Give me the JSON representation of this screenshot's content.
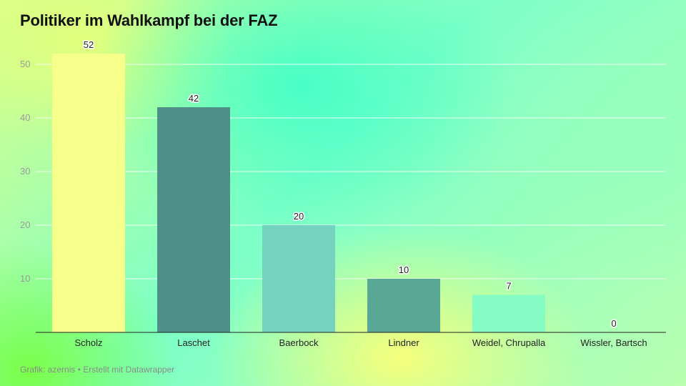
{
  "chart_data": {
    "type": "bar",
    "title": "Politiker im Wahlkampf bei der FAZ",
    "categories": [
      "Scholz",
      "Laschet",
      "Baerbock",
      "Lindner",
      "Weidel, Chrupalla",
      "Wissler, Bartsch"
    ],
    "values": [
      52,
      42,
      20,
      10,
      7,
      0
    ],
    "colors": [
      "#f6ff8a",
      "#4f8f87",
      "#74d2bf",
      "#59a896",
      "#84fcc4",
      "#84fcc4"
    ],
    "yticks": [
      10,
      20,
      30,
      40,
      50
    ],
    "ylim": [
      0,
      52
    ],
    "grid": true,
    "xlabel": "",
    "ylabel": ""
  },
  "footer": "Grafik: azernis • Erstellt mit Datawrapper"
}
